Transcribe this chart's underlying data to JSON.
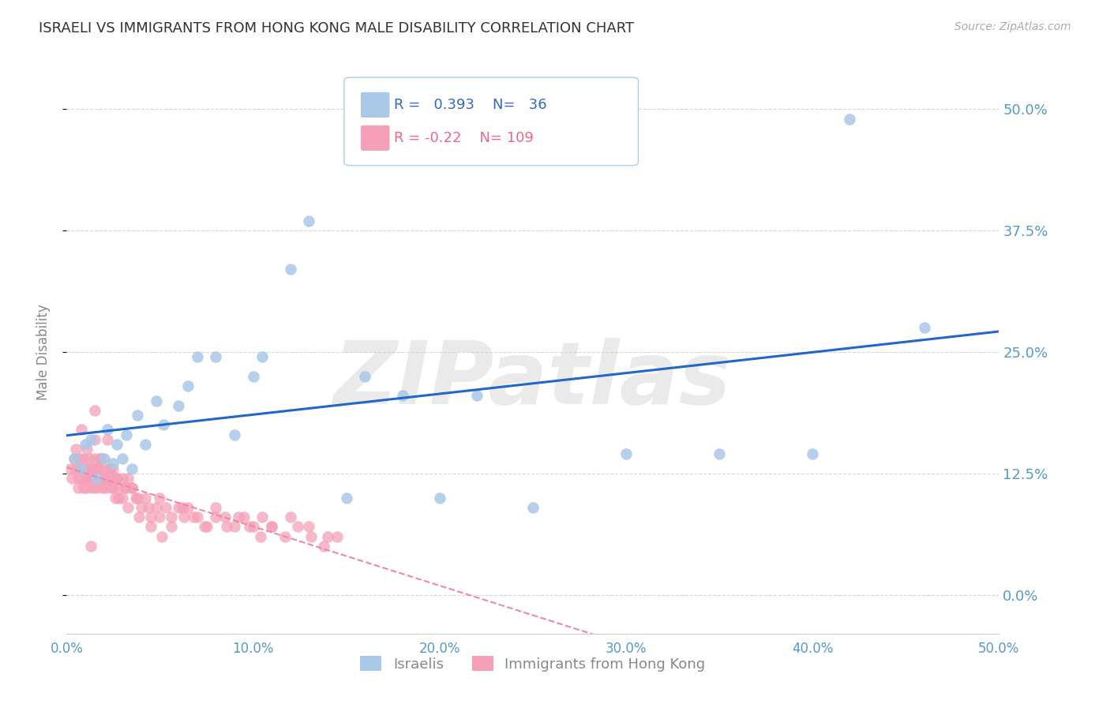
{
  "title": "ISRAELI VS IMMIGRANTS FROM HONG KONG MALE DISABILITY CORRELATION CHART",
  "source": "Source: ZipAtlas.com",
  "ylabel": "Male Disability",
  "xlim": [
    0.0,
    0.5
  ],
  "ylim": [
    -0.04,
    0.54
  ],
  "yticks": [
    0.0,
    0.125,
    0.25,
    0.375,
    0.5
  ],
  "ytick_labels": [
    "0.0%",
    "12.5%",
    "25.0%",
    "37.5%",
    "50.0%"
  ],
  "xticks": [
    0.0,
    0.1,
    0.2,
    0.3,
    0.4,
    0.5
  ],
  "xtick_labels": [
    "0.0%",
    "10.0%",
    "20.0%",
    "30.0%",
    "40.0%",
    "50.0%"
  ],
  "grid_color": "#cccccc",
  "watermark": "ZIPatlas",
  "israelis_color": "#aac8e8",
  "hk_color": "#f5a0b8",
  "line_israeli_color": "#2266cc",
  "line_hk_color": "#ee88aa",
  "R_israeli": 0.393,
  "N_israeli": 36,
  "R_hk": -0.22,
  "N_hk": 109,
  "israeli_x": [
    0.004,
    0.008,
    0.01,
    0.013,
    0.016,
    0.02,
    0.022,
    0.025,
    0.027,
    0.03,
    0.032,
    0.035,
    0.038,
    0.042,
    0.048,
    0.052,
    0.06,
    0.065,
    0.07,
    0.08,
    0.09,
    0.1,
    0.105,
    0.12,
    0.13,
    0.15,
    0.16,
    0.18,
    0.2,
    0.22,
    0.25,
    0.3,
    0.35,
    0.4,
    0.42,
    0.46
  ],
  "israeli_y": [
    0.14,
    0.13,
    0.155,
    0.16,
    0.12,
    0.14,
    0.17,
    0.135,
    0.155,
    0.14,
    0.165,
    0.13,
    0.185,
    0.155,
    0.2,
    0.175,
    0.195,
    0.215,
    0.245,
    0.245,
    0.165,
    0.225,
    0.245,
    0.335,
    0.385,
    0.1,
    0.225,
    0.205,
    0.1,
    0.205,
    0.09,
    0.145,
    0.145,
    0.145,
    0.49,
    0.275
  ],
  "hk_x": [
    0.002,
    0.003,
    0.004,
    0.005,
    0.005,
    0.006,
    0.006,
    0.007,
    0.007,
    0.008,
    0.008,
    0.009,
    0.009,
    0.01,
    0.01,
    0.011,
    0.011,
    0.012,
    0.012,
    0.013,
    0.013,
    0.014,
    0.014,
    0.015,
    0.015,
    0.016,
    0.016,
    0.017,
    0.017,
    0.018,
    0.018,
    0.019,
    0.02,
    0.02,
    0.021,
    0.022,
    0.023,
    0.024,
    0.025,
    0.026,
    0.027,
    0.028,
    0.03,
    0.031,
    0.033,
    0.035,
    0.037,
    0.04,
    0.042,
    0.045,
    0.048,
    0.05,
    0.053,
    0.056,
    0.06,
    0.063,
    0.065,
    0.07,
    0.075,
    0.08,
    0.085,
    0.09,
    0.095,
    0.1,
    0.105,
    0.11,
    0.12,
    0.13,
    0.14,
    0.015,
    0.018,
    0.022,
    0.025,
    0.03,
    0.035,
    0.008,
    0.011,
    0.015,
    0.019,
    0.023,
    0.027,
    0.032,
    0.038,
    0.044,
    0.05,
    0.056,
    0.062,
    0.068,
    0.074,
    0.08,
    0.086,
    0.092,
    0.098,
    0.104,
    0.11,
    0.117,
    0.124,
    0.131,
    0.138,
    0.145,
    0.013,
    0.016,
    0.02,
    0.024,
    0.028,
    0.033,
    0.039,
    0.045,
    0.051
  ],
  "hk_y": [
    0.13,
    0.12,
    0.14,
    0.13,
    0.15,
    0.12,
    0.11,
    0.13,
    0.14,
    0.12,
    0.13,
    0.11,
    0.14,
    0.13,
    0.12,
    0.13,
    0.11,
    0.12,
    0.14,
    0.13,
    0.12,
    0.11,
    0.13,
    0.12,
    0.14,
    0.13,
    0.11,
    0.12,
    0.13,
    0.14,
    0.12,
    0.11,
    0.13,
    0.12,
    0.11,
    0.12,
    0.13,
    0.12,
    0.11,
    0.1,
    0.12,
    0.11,
    0.1,
    0.11,
    0.12,
    0.11,
    0.1,
    0.09,
    0.1,
    0.08,
    0.09,
    0.1,
    0.09,
    0.08,
    0.09,
    0.08,
    0.09,
    0.08,
    0.07,
    0.09,
    0.08,
    0.07,
    0.08,
    0.07,
    0.08,
    0.07,
    0.08,
    0.07,
    0.06,
    0.19,
    0.14,
    0.16,
    0.13,
    0.12,
    0.11,
    0.17,
    0.15,
    0.16,
    0.14,
    0.13,
    0.12,
    0.11,
    0.1,
    0.09,
    0.08,
    0.07,
    0.09,
    0.08,
    0.07,
    0.08,
    0.07,
    0.08,
    0.07,
    0.06,
    0.07,
    0.06,
    0.07,
    0.06,
    0.05,
    0.06,
    0.05,
    0.13,
    0.12,
    0.11,
    0.1,
    0.09,
    0.08,
    0.07,
    0.06
  ],
  "background_color": "#ffffff",
  "title_color": "#333333",
  "tick_label_color": "#5599cc",
  "axis_label_color": "#888888",
  "legend_text_israeli_color": "#3366cc",
  "legend_text_hk_color": "#ee6688"
}
